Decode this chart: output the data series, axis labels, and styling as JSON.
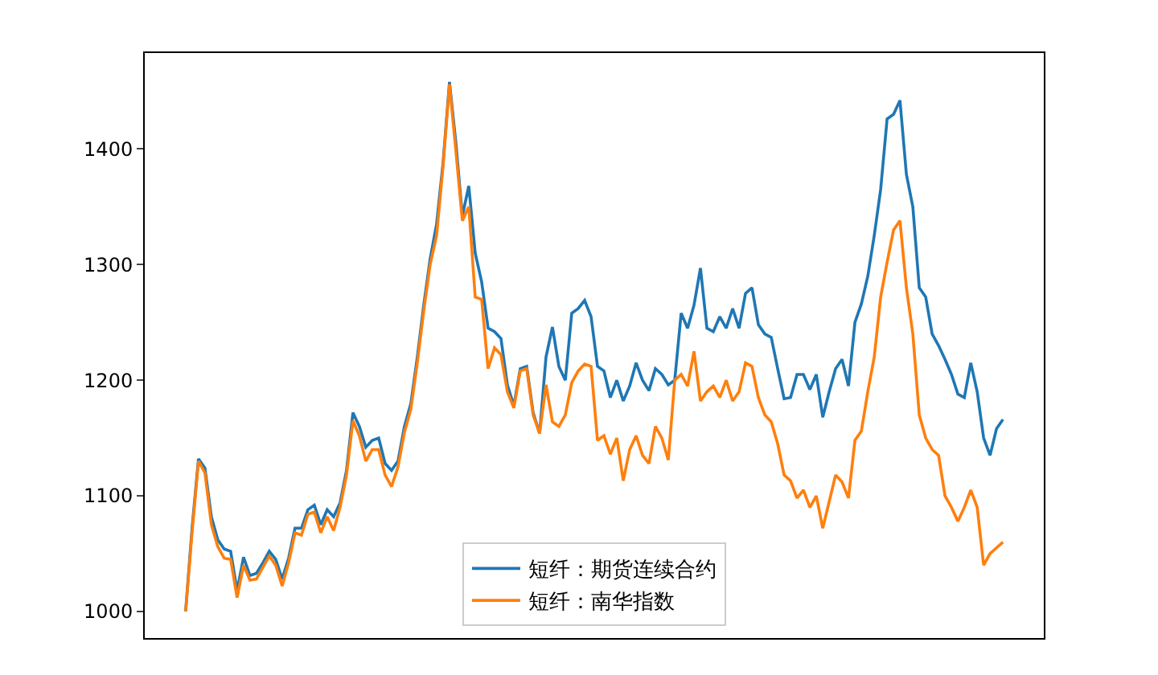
{
  "chart_data": {
    "type": "line",
    "categories": [
      null,
      null,
      null,
      null,
      null,
      null,
      null,
      null,
      null,
      null,
      null,
      null,
      null,
      null,
      null,
      null,
      null,
      null,
      null,
      null,
      null,
      null,
      null,
      null,
      null,
      null,
      null,
      null,
      null,
      null,
      null,
      null,
      null,
      null,
      null,
      null,
      null,
      null,
      null,
      null,
      null,
      null,
      null,
      null,
      null,
      null,
      null,
      null,
      null,
      null,
      null,
      null,
      null,
      null,
      null,
      null,
      null,
      null,
      null,
      null,
      null,
      null,
      null,
      null,
      null,
      null,
      null,
      null,
      null,
      null,
      null,
      null,
      null,
      null,
      null,
      null,
      null,
      null,
      null,
      null,
      null,
      null,
      null,
      null,
      null,
      null,
      null,
      null,
      null,
      null,
      null,
      null,
      null,
      null,
      null,
      null,
      null,
      null,
      null,
      null,
      null,
      null,
      null,
      null,
      null,
      null,
      null,
      null,
      null,
      null,
      null,
      null,
      null,
      null,
      null,
      null,
      null,
      null,
      null,
      null,
      null,
      null,
      null,
      null,
      null,
      null,
      null,
      null
    ],
    "series": [
      {
        "name": "短纤：期货连续合约",
        "color": "#1f77b4",
        "values": [
          1000,
          1072,
          1132,
          1124,
          1082,
          1062,
          1054,
          1052,
          1018,
          1047,
          1031,
          1033,
          1042,
          1052,
          1045,
          1028,
          1046,
          1072,
          1072,
          1088,
          1092,
          1075,
          1088,
          1082,
          1094,
          1122,
          1172,
          1160,
          1142,
          1148,
          1150,
          1128,
          1122,
          1130,
          1160,
          1180,
          1220,
          1265,
          1305,
          1335,
          1388,
          1458,
          1405,
          1342,
          1368,
          1310,
          1285,
          1245,
          1242,
          1236,
          1196,
          1178,
          1210,
          1212,
          1172,
          1154,
          1220,
          1246,
          1212,
          1200,
          1258,
          1262,
          1269,
          1255,
          1212,
          1208,
          1185,
          1200,
          1182,
          1195,
          1215,
          1200,
          1191,
          1210,
          1205,
          1196,
          1200,
          1258,
          1245,
          1265,
          1297,
          1245,
          1242,
          1255,
          1245,
          1262,
          1245,
          1275,
          1280,
          1248,
          1240,
          1237,
          1210,
          1184,
          1185,
          1205,
          1205,
          1192,
          1205,
          1168,
          1190,
          1210,
          1218,
          1195,
          1250,
          1266,
          1290,
          1325,
          1365,
          1426,
          1430,
          1442,
          1378,
          1350,
          1280,
          1272,
          1240,
          1230,
          1218,
          1205,
          1188,
          1185,
          1215,
          1190,
          1150,
          1135,
          1158,
          1166
        ]
      },
      {
        "name": "短纤：南华指数",
        "color": "#ff7f0e",
        "values": [
          1000,
          1068,
          1130,
          1120,
          1075,
          1056,
          1046,
          1045,
          1012,
          1040,
          1027,
          1028,
          1038,
          1048,
          1040,
          1022,
          1042,
          1068,
          1066,
          1084,
          1086,
          1068,
          1082,
          1070,
          1090,
          1118,
          1165,
          1152,
          1130,
          1140,
          1140,
          1118,
          1108,
          1125,
          1155,
          1175,
          1215,
          1260,
          1300,
          1325,
          1385,
          1456,
          1398,
          1338,
          1350,
          1272,
          1270,
          1210,
          1228,
          1222,
          1190,
          1176,
          1208,
          1210,
          1170,
          1154,
          1196,
          1164,
          1160,
          1170,
          1198,
          1208,
          1214,
          1212,
          1148,
          1152,
          1136,
          1150,
          1113,
          1140,
          1152,
          1135,
          1128,
          1160,
          1150,
          1131,
          1200,
          1205,
          1195,
          1225,
          1182,
          1190,
          1195,
          1185,
          1200,
          1182,
          1190,
          1215,
          1212,
          1185,
          1170,
          1164,
          1145,
          1118,
          1113,
          1098,
          1105,
          1090,
          1100,
          1072,
          1095,
          1118,
          1112,
          1098,
          1148,
          1156,
          1190,
          1220,
          1272,
          1302,
          1330,
          1338,
          1280,
          1240,
          1170,
          1150,
          1140,
          1135,
          1100,
          1090,
          1078,
          1090,
          1105,
          1090,
          1040,
          1050,
          1055,
          1060
        ]
      }
    ],
    "ylim": [
      977,
      1483
    ],
    "yticks": [
      1000,
      1100,
      1200,
      1300,
      1400
    ],
    "legend": "bottom",
    "marker": "none",
    "line_style": "solid"
  }
}
